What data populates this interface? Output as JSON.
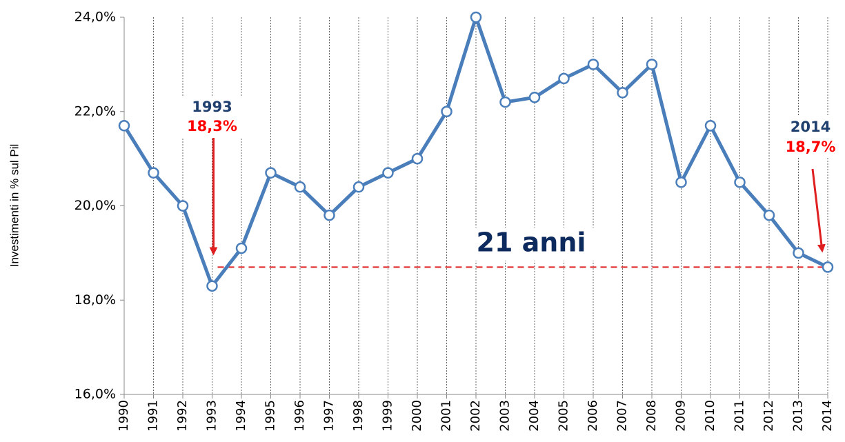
{
  "chart_data": {
    "type": "line",
    "y_axis_label": "Investimenti in % sul Pil",
    "categories": [
      "1990",
      "1991",
      "1992",
      "1993",
      "1994",
      "1995",
      "1996",
      "1997",
      "1998",
      "1999",
      "2000",
      "2001",
      "2002",
      "2003",
      "2004",
      "2005",
      "2006",
      "2007",
      "2008",
      "2009",
      "2010",
      "2011",
      "2012",
      "2013",
      "2014"
    ],
    "series": [
      {
        "name": "Investimenti",
        "color": "#4a7ebb",
        "values": [
          21.7,
          20.7,
          20.0,
          18.3,
          19.1,
          20.7,
          20.4,
          19.8,
          20.4,
          20.7,
          21.0,
          22.0,
          24.0,
          22.2,
          22.3,
          22.7,
          23.0,
          22.4,
          23.0,
          20.5,
          21.7,
          20.5,
          19.8,
          19.0,
          18.7
        ]
      }
    ],
    "ylim": [
      16,
      24
    ],
    "yticks": [
      {
        "value": 16,
        "label": "16,0%"
      },
      {
        "value": 18,
        "label": "18,0%"
      },
      {
        "value": 20,
        "label": "20,0%"
      },
      {
        "value": 22,
        "label": "22,0%"
      },
      {
        "value": 24,
        "label": "24,0%"
      }
    ],
    "grid": "x",
    "annotations": [
      {
        "year": "1993",
        "value_label": "18,3%"
      },
      {
        "year": "2014",
        "value_label": "18,7%"
      },
      {
        "text": "21 anni"
      }
    ]
  }
}
